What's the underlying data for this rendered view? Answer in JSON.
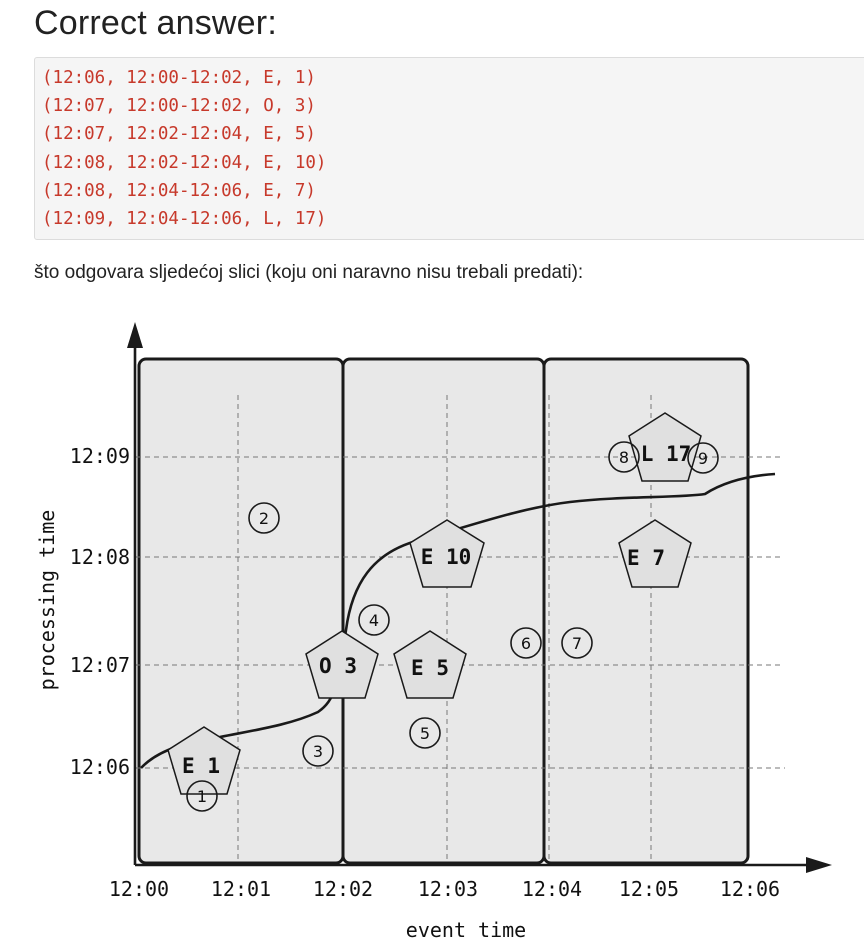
{
  "heading": "Correct answer:",
  "code_lines": [
    "(12:06, 12:00-12:02, E, 1)",
    "(12:07, 12:00-12:02, O, 3)",
    "(12:07, 12:02-12:04, E, 5)",
    "(12:08, 12:02-12:04, E, 10)",
    "(12:08, 12:04-12:06, E, 7)",
    "(12:09, 12:04-12:06, L, 17)"
  ],
  "paragraph": "što odgovara sljedećoj slici (koju oni naravno nisu trebali predati):",
  "figure": {
    "xlabel": "event time",
    "ylabel": "processing time",
    "x_ticks": [
      "12:00",
      "12:01",
      "12:02",
      "12:03",
      "12:04",
      "12:05",
      "12:06"
    ],
    "y_ticks": [
      "12:06",
      "12:07",
      "12:08",
      "12:09"
    ],
    "colors": {
      "window_fill": "#e8e8e8",
      "pentagon_fill": "#e0e0e0",
      "stroke": "#1a1a1a",
      "grid": "#777777"
    },
    "windows": [
      {
        "start": "12:00",
        "end": "12:02"
      },
      {
        "start": "12:02",
        "end": "12:04"
      },
      {
        "start": "12:04",
        "end": "12:06"
      }
    ],
    "pentagons": [
      {
        "label": "E 1"
      },
      {
        "label": "O 3"
      },
      {
        "label": "E 5"
      },
      {
        "label": "E 10"
      },
      {
        "label": "E 7"
      },
      {
        "label": "L 17"
      }
    ],
    "events": [
      "1",
      "2",
      "3",
      "4",
      "5",
      "6",
      "7",
      "8",
      "9"
    ]
  }
}
